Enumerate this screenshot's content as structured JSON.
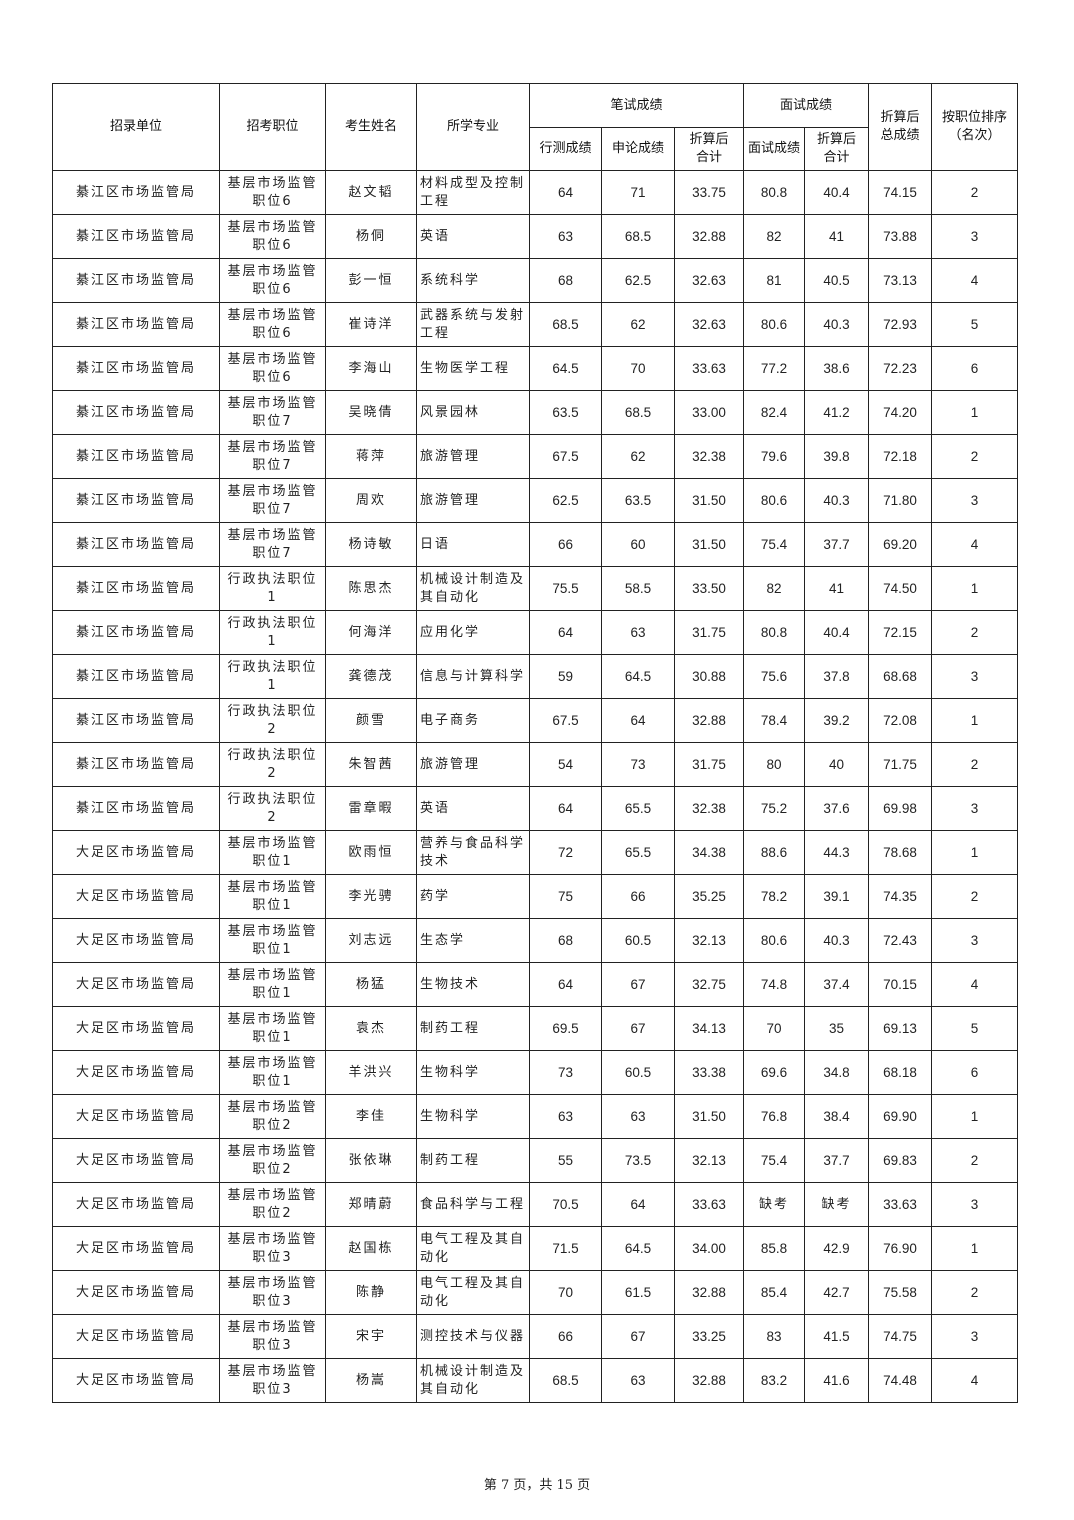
{
  "headers": {
    "unit": "招录单位",
    "position": "招考职位",
    "name": "考生姓名",
    "major": "所学专业",
    "written": "笔试成绩",
    "interview": "面试成绩",
    "total": "折算后总成绩",
    "rank": "按职位排序（名次）",
    "xingce": "行测成绩",
    "shenlun": "申论成绩",
    "written_converted": "折算后合计",
    "interview_score": "面试成绩",
    "interview_converted": "折算后合计"
  },
  "rows": [
    [
      "綦江区市场监管局",
      "基层市场监管职位6",
      "赵文韬",
      "材料成型及控制工程",
      "64",
      "71",
      "33.75",
      "80.8",
      "40.4",
      "74.15",
      "2"
    ],
    [
      "綦江区市场监管局",
      "基层市场监管职位6",
      "杨侗",
      "英语",
      "63",
      "68.5",
      "32.88",
      "82",
      "41",
      "73.88",
      "3"
    ],
    [
      "綦江区市场监管局",
      "基层市场监管职位6",
      "彭一恒",
      "系统科学",
      "68",
      "62.5",
      "32.63",
      "81",
      "40.5",
      "73.13",
      "4"
    ],
    [
      "綦江区市场监管局",
      "基层市场监管职位6",
      "崔诗洋",
      "武器系统与发射工程",
      "68.5",
      "62",
      "32.63",
      "80.6",
      "40.3",
      "72.93",
      "5"
    ],
    [
      "綦江区市场监管局",
      "基层市场监管职位6",
      "李海山",
      "生物医学工程",
      "64.5",
      "70",
      "33.63",
      "77.2",
      "38.6",
      "72.23",
      "6"
    ],
    [
      "綦江区市场监管局",
      "基层市场监管职位7",
      "吴晓倩",
      "风景园林",
      "63.5",
      "68.5",
      "33.00",
      "82.4",
      "41.2",
      "74.20",
      "1"
    ],
    [
      "綦江区市场监管局",
      "基层市场监管职位7",
      "蒋萍",
      "旅游管理",
      "67.5",
      "62",
      "32.38",
      "79.6",
      "39.8",
      "72.18",
      "2"
    ],
    [
      "綦江区市场监管局",
      "基层市场监管职位7",
      "周欢",
      "旅游管理",
      "62.5",
      "63.5",
      "31.50",
      "80.6",
      "40.3",
      "71.80",
      "3"
    ],
    [
      "綦江区市场监管局",
      "基层市场监管职位7",
      "杨诗敏",
      "日语",
      "66",
      "60",
      "31.50",
      "75.4",
      "37.7",
      "69.20",
      "4"
    ],
    [
      "綦江区市场监管局",
      "行政执法职位1",
      "陈思杰",
      "机械设计制造及其自动化",
      "75.5",
      "58.5",
      "33.50",
      "82",
      "41",
      "74.50",
      "1"
    ],
    [
      "綦江区市场监管局",
      "行政执法职位1",
      "何海洋",
      "应用化学",
      "64",
      "63",
      "31.75",
      "80.8",
      "40.4",
      "72.15",
      "2"
    ],
    [
      "綦江区市场监管局",
      "行政执法职位1",
      "龚德茂",
      "信息与计算科学",
      "59",
      "64.5",
      "30.88",
      "75.6",
      "37.8",
      "68.68",
      "3"
    ],
    [
      "綦江区市场监管局",
      "行政执法职位2",
      "颜雪",
      "电子商务",
      "67.5",
      "64",
      "32.88",
      "78.4",
      "39.2",
      "72.08",
      "1"
    ],
    [
      "綦江区市场监管局",
      "行政执法职位2",
      "朱智茜",
      "旅游管理",
      "54",
      "73",
      "31.75",
      "80",
      "40",
      "71.75",
      "2"
    ],
    [
      "綦江区市场监管局",
      "行政执法职位2",
      "雷章暇",
      "英语",
      "64",
      "65.5",
      "32.38",
      "75.2",
      "37.6",
      "69.98",
      "3"
    ],
    [
      "大足区市场监管局",
      "基层市场监管职位1",
      "欧雨恒",
      "营养与食品科学技术",
      "72",
      "65.5",
      "34.38",
      "88.6",
      "44.3",
      "78.68",
      "1"
    ],
    [
      "大足区市场监管局",
      "基层市场监管职位1",
      "李光骋",
      "药学",
      "75",
      "66",
      "35.25",
      "78.2",
      "39.1",
      "74.35",
      "2"
    ],
    [
      "大足区市场监管局",
      "基层市场监管职位1",
      "刘志远",
      "生态学",
      "68",
      "60.5",
      "32.13",
      "80.6",
      "40.3",
      "72.43",
      "3"
    ],
    [
      "大足区市场监管局",
      "基层市场监管职位1",
      "杨猛",
      "生物技术",
      "64",
      "67",
      "32.75",
      "74.8",
      "37.4",
      "70.15",
      "4"
    ],
    [
      "大足区市场监管局",
      "基层市场监管职位1",
      "袁杰",
      "制药工程",
      "69.5",
      "67",
      "34.13",
      "70",
      "35",
      "69.13",
      "5"
    ],
    [
      "大足区市场监管局",
      "基层市场监管职位1",
      "羊洪兴",
      "生物科学",
      "73",
      "60.5",
      "33.38",
      "69.6",
      "34.8",
      "68.18",
      "6"
    ],
    [
      "大足区市场监管局",
      "基层市场监管职位2",
      "李佳",
      "生物科学",
      "63",
      "63",
      "31.50",
      "76.8",
      "38.4",
      "69.90",
      "1"
    ],
    [
      "大足区市场监管局",
      "基层市场监管职位2",
      "张依琳",
      "制药工程",
      "55",
      "73.5",
      "32.13",
      "75.4",
      "37.7",
      "69.83",
      "2"
    ],
    [
      "大足区市场监管局",
      "基层市场监管职位2",
      "郑晴蔚",
      "食品科学与工程",
      "70.5",
      "64",
      "33.63",
      "缺考",
      "缺考",
      "33.63",
      "3"
    ],
    [
      "大足区市场监管局",
      "基层市场监管职位3",
      "赵国栋",
      "电气工程及其自动化",
      "71.5",
      "64.5",
      "34.00",
      "85.8",
      "42.9",
      "76.90",
      "1"
    ],
    [
      "大足区市场监管局",
      "基层市场监管职位3",
      "陈静",
      "电气工程及其自动化",
      "70",
      "61.5",
      "32.88",
      "85.4",
      "42.7",
      "75.58",
      "2"
    ],
    [
      "大足区市场监管局",
      "基层市场监管职位3",
      "宋宇",
      "测控技术与仪器",
      "66",
      "67",
      "33.25",
      "83",
      "41.5",
      "74.75",
      "3"
    ],
    [
      "大足区市场监管局",
      "基层市场监管职位3",
      "杨嵩",
      "机械设计制造及其自动化",
      "68.5",
      "63",
      "32.88",
      "83.2",
      "41.6",
      "74.48",
      "4"
    ]
  ],
  "footer": "第 7 页，共 15 页"
}
